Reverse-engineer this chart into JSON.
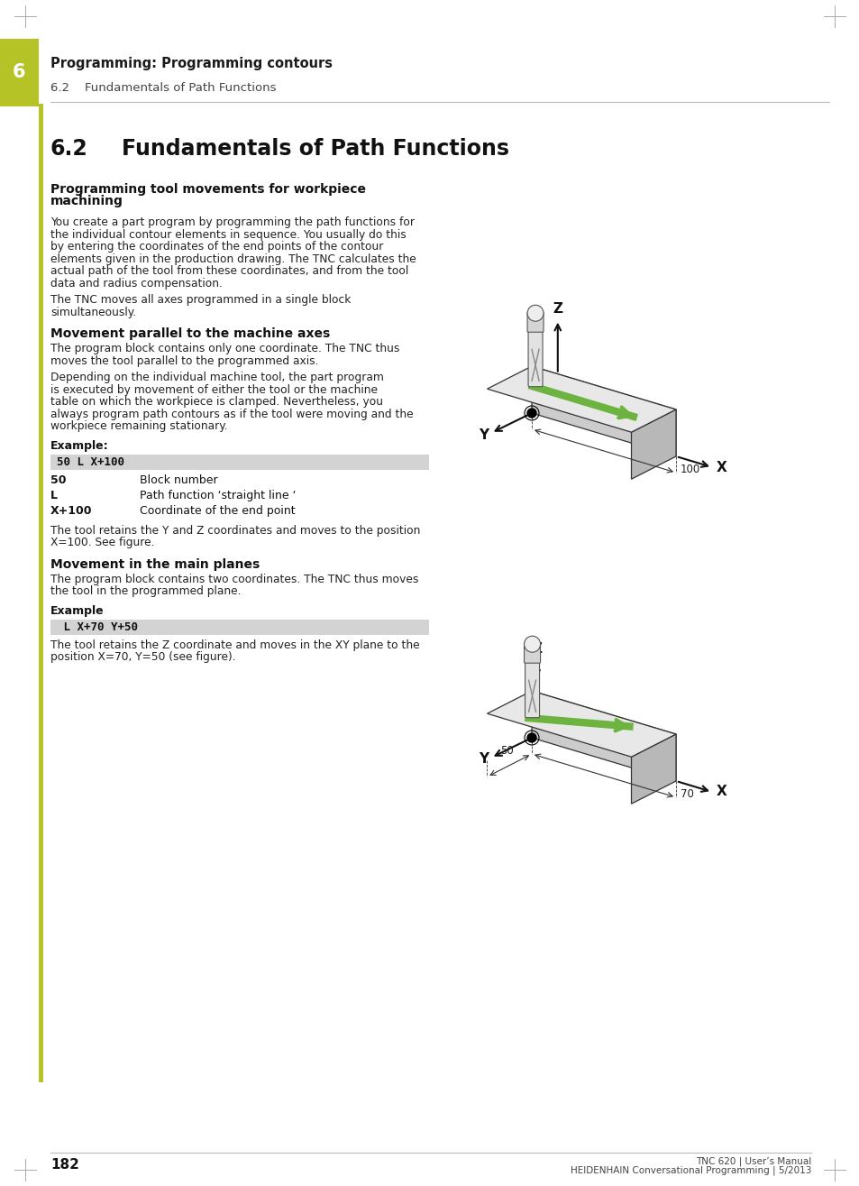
{
  "page_bg": "#ffffff",
  "tab_color": "#b5c327",
  "tab_number": "6",
  "header_chapter": "Programming: Programming contours",
  "header_section": "6.2    Fundamentals of Path Functions",
  "section_number": "6.2",
  "section_title": "Fundamentals of Path Functions",
  "subsection1_title": "Programming tool movements for workpiece\nmachining",
  "body1_lines": [
    "You create a part program by programming the path functions for",
    "the individual contour elements in sequence. You usually do this",
    "by entering the coordinates of the end points of the contour",
    "elements given in the production drawing. The TNC calculates the",
    "actual path of the tool from these coordinates, and from the tool",
    "data and radius compensation."
  ],
  "body2_lines": [
    "The TNC moves all axes programmed in a single block",
    "simultaneously."
  ],
  "subsection2_title": "Movement parallel to the machine axes",
  "body3_lines": [
    "The program block contains only one coordinate. The TNC thus",
    "moves the tool parallel to the programmed axis."
  ],
  "body4_lines": [
    "Depending on the individual machine tool, the part program",
    "is executed by movement of either the tool or the machine",
    "table on which the workpiece is clamped. Nevertheless, you",
    "always program path contours as if the tool were moving and the",
    "workpiece remaining stationary."
  ],
  "example1_label": "Example:",
  "code1_bg": "#d3d3d3",
  "code1_text": "50 L X+100",
  "table1_bold": [
    "50",
    "L",
    "X+100"
  ],
  "table1_normal": [
    "Block number",
    "Path function ‘straight line ‘",
    "Coordinate of the end point"
  ],
  "body5_lines": [
    "The tool retains the Y and Z coordinates and moves to the position",
    "X=100. See figure."
  ],
  "subsection3_title": "Movement in the main planes",
  "body6_lines": [
    "The program block contains two coordinates. The TNC thus moves",
    "the tool in the programmed plane."
  ],
  "example2_label": "Example",
  "code2_bg": "#d3d3d3",
  "code2_text": " L X+70 Y+50",
  "body7_lines": [
    "The tool retains the Z coordinate and moves in the XY plane to the",
    "position X=70, Y=50 (see figure)."
  ],
  "footer_page": "182",
  "footer_right1": "TNC 620 | User’s Manual",
  "footer_right2": "HEIDENHAIN Conversational Programming | 5/2013",
  "arrow_color": "#6db33f",
  "axis_color": "#111111",
  "box_face_top": "#e8e8e8",
  "box_face_front": "#cccccc",
  "box_face_right": "#b8b8b8",
  "box_edge": "#333333"
}
